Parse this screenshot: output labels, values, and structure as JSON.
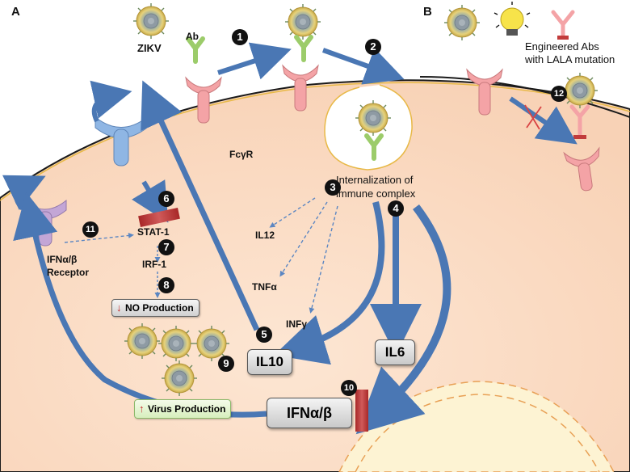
{
  "panels": {
    "a": "A",
    "b": "B"
  },
  "labels": {
    "zikv": "ZIKV",
    "ab": "Ab",
    "fcr": "FcγR",
    "internalization_line1": "Internalization of",
    "internalization_line2": "immune complex",
    "engineered_line1": "Engineered Abs",
    "engineered_line2": "with LALA mutation",
    "ifn_receptor_line1": "IFNα/β",
    "ifn_receptor_line2": "Receptor",
    "stat1": "STAT-1",
    "irf1": "IRF-1",
    "il12": "IL12",
    "tnf": "TNFα",
    "infg": "INFγ"
  },
  "boxes": {
    "no_production": "NO Production",
    "virus_production": "Virus Production",
    "il10": "IL10",
    "il6": "IL6",
    "ifnab": "IFNα/β"
  },
  "steps": [
    "1",
    "2",
    "3",
    "4",
    "5",
    "6",
    "7",
    "8",
    "9",
    "10",
    "11",
    "12"
  ],
  "colors": {
    "cell_fill": "#fbdcc5",
    "membrane": "#e8b948",
    "arrow_blue": "#4a77b4",
    "receptor_pink": "#f4a3a6",
    "receptor_blue": "#8fb6e4",
    "receptor_purple": "#c3a6d6",
    "inhibitor_red": "#c23b3b",
    "antibody_green": "#b8e08e"
  }
}
